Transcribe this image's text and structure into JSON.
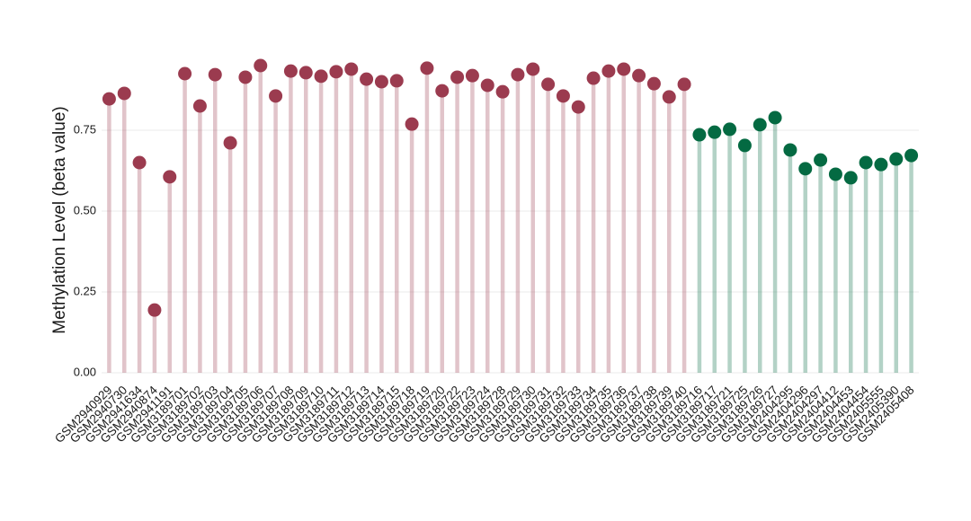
{
  "chart_data": {
    "type": "lollipop",
    "y_label": "Methylation Level (beta value)",
    "categories": [
      "GSM2940929",
      "GSM2940730",
      "GSM2941634",
      "GSM2940874",
      "GSM2941191",
      "GSM3189701",
      "GSM3189702",
      "GSM3189703",
      "GSM3189704",
      "GSM3189705",
      "GSM3189706",
      "GSM3189707",
      "GSM3189708",
      "GSM3189709",
      "GSM3189710",
      "GSM3189711",
      "GSM3189712",
      "GSM3189713",
      "GSM3189714",
      "GSM3189715",
      "GSM3189718",
      "GSM3189719",
      "GSM3189720",
      "GSM3189722",
      "GSM3189723",
      "GSM3189724",
      "GSM3189728",
      "GSM3189729",
      "GSM3189730",
      "GSM3189731",
      "GSM3189732",
      "GSM3189733",
      "GSM3189734",
      "GSM3189735",
      "GSM3189736",
      "GSM3189737",
      "GSM3189738",
      "GSM3189739",
      "GSM3189740",
      "GSM3189716",
      "GSM3189717",
      "GSM3189721",
      "GSM3189725",
      "GSM3189726",
      "GSM3189727",
      "GSM2404295",
      "GSM2404296",
      "GSM2404297",
      "GSM2404412",
      "GSM2404453",
      "GSM2404454",
      "GSM2405555",
      "GSM2405390",
      "GSM2405408"
    ],
    "values": [
      0.847,
      0.864,
      0.65,
      0.194,
      0.606,
      0.925,
      0.825,
      0.922,
      0.711,
      0.914,
      0.95,
      0.856,
      0.933,
      0.928,
      0.917,
      0.931,
      0.939,
      0.908,
      0.9,
      0.903,
      0.769,
      0.942,
      0.872,
      0.914,
      0.919,
      0.889,
      0.869,
      0.922,
      0.939,
      0.892,
      0.856,
      0.822,
      0.911,
      0.933,
      0.939,
      0.919,
      0.894,
      0.853,
      0.892,
      0.736,
      0.744,
      0.753,
      0.703,
      0.767,
      0.789,
      0.689,
      0.631,
      0.658,
      0.614,
      0.603,
      0.65,
      0.644,
      0.661,
      0.672
    ],
    "colors": [
      "#9b3b4f",
      "#9b3b4f",
      "#9b3b4f",
      "#9b3b4f",
      "#9b3b4f",
      "#9b3b4f",
      "#9b3b4f",
      "#9b3b4f",
      "#9b3b4f",
      "#9b3b4f",
      "#9b3b4f",
      "#9b3b4f",
      "#9b3b4f",
      "#9b3b4f",
      "#9b3b4f",
      "#9b3b4f",
      "#9b3b4f",
      "#9b3b4f",
      "#9b3b4f",
      "#9b3b4f",
      "#9b3b4f",
      "#9b3b4f",
      "#9b3b4f",
      "#9b3b4f",
      "#9b3b4f",
      "#9b3b4f",
      "#9b3b4f",
      "#9b3b4f",
      "#9b3b4f",
      "#9b3b4f",
      "#9b3b4f",
      "#9b3b4f",
      "#9b3b4f",
      "#9b3b4f",
      "#9b3b4f",
      "#9b3b4f",
      "#9b3b4f",
      "#9b3b4f",
      "#9b3b4f",
      "#046a42",
      "#046a42",
      "#046a42",
      "#046a42",
      "#046a42",
      "#046a42",
      "#046a42",
      "#046a42",
      "#046a42",
      "#046a42",
      "#046a42",
      "#046a42",
      "#046a42",
      "#046a42",
      "#046a42"
    ],
    "ylim": [
      0,
      1
    ],
    "yticks": [
      {
        "value": 0,
        "label": "0.00"
      },
      {
        "value": 0.25,
        "label": "0.25"
      },
      {
        "value": 0.5,
        "label": "0.50"
      },
      {
        "value": 0.75,
        "label": "0.75"
      }
    ],
    "grid": true
  }
}
